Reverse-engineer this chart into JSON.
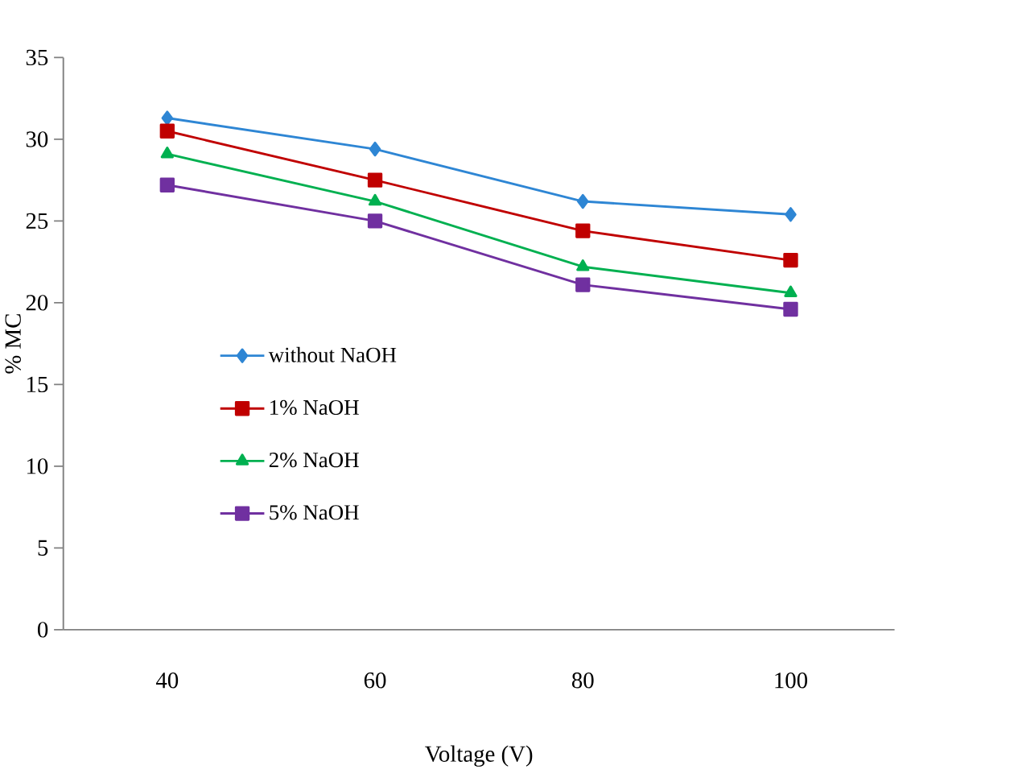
{
  "chart_data": {
    "type": "line",
    "xlabel": "Voltage (V)",
    "ylabel": "% MC",
    "categories": [
      "40",
      "60",
      "80",
      "100"
    ],
    "series": [
      {
        "name": "without NaOH",
        "color": "#2e86d4",
        "marker": "diamond",
        "values": [
          31.3,
          29.4,
          26.2,
          25.4
        ]
      },
      {
        "name": "1% NaOH",
        "color": "#c00000",
        "marker": "square",
        "values": [
          30.5,
          27.5,
          24.4,
          22.6
        ]
      },
      {
        "name": "2% NaOH",
        "color": "#00b050",
        "marker": "triangle",
        "values": [
          29.1,
          26.2,
          22.2,
          20.6
        ]
      },
      {
        "name": "5% NaOH",
        "color": "#7030a0",
        "marker": "square",
        "values": [
          27.2,
          25.0,
          21.1,
          19.6
        ]
      }
    ],
    "ylim": [
      0,
      35
    ],
    "yticks": [
      0,
      5,
      10,
      15,
      20,
      25,
      30,
      35
    ],
    "grid": false,
    "legend": "left"
  }
}
